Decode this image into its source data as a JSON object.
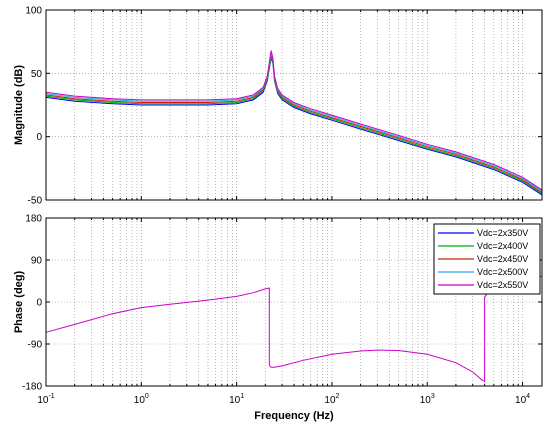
{
  "chart_data": [
    {
      "type": "line",
      "panel": "magnitude",
      "xscale": "log",
      "xlim": [
        0.1,
        16000
      ],
      "ylim": [
        -50,
        100
      ],
      "ylabel": "Magnitude (dB)",
      "yticks": [
        -50,
        0,
        50,
        100
      ],
      "ytick_labels": [
        "-50",
        "0",
        "50",
        "100"
      ],
      "grid": true,
      "series": [
        {
          "name": "Vdc=2x350V",
          "color": "#0000ff",
          "x": [
            0.1,
            0.2,
            0.5,
            1,
            2,
            5,
            10,
            15,
            19,
            21,
            23,
            24,
            25,
            27,
            30,
            40,
            60,
            100,
            200,
            500,
            1000,
            2000,
            5000,
            10000,
            16000
          ],
          "y": [
            31,
            28,
            26,
            25,
            25,
            25,
            26,
            29,
            35,
            44,
            62,
            58,
            44,
            34,
            29,
            23,
            18,
            13,
            6,
            -3,
            -10,
            -16,
            -26,
            -36,
            -46
          ]
        },
        {
          "name": "Vdc=2x400V",
          "color": "#00aa00",
          "x": [
            0.1,
            0.2,
            0.5,
            1,
            2,
            5,
            10,
            15,
            19,
            21,
            23,
            24,
            25,
            27,
            30,
            40,
            60,
            100,
            200,
            500,
            1000,
            2000,
            5000,
            10000,
            16000
          ],
          "y": [
            32,
            29,
            27,
            26,
            26,
            26,
            27,
            30,
            36,
            45,
            63,
            59,
            45,
            35,
            30,
            24,
            19,
            14,
            7,
            -2,
            -9,
            -15,
            -25,
            -35,
            -45
          ]
        },
        {
          "name": "Vdc=2x450V",
          "color": "#cc2200",
          "x": [
            0.1,
            0.2,
            0.5,
            1,
            2,
            5,
            10,
            15,
            19,
            21,
            23,
            24,
            25,
            27,
            30,
            40,
            60,
            100,
            200,
            500,
            1000,
            2000,
            5000,
            10000,
            16000
          ],
          "y": [
            33,
            30,
            28,
            27,
            27,
            27,
            28,
            31,
            37,
            46,
            65,
            60,
            46,
            36,
            31,
            25,
            20,
            15,
            8,
            -1,
            -8,
            -14,
            -24,
            -34,
            -44
          ]
        },
        {
          "name": "Vdc=2x500V",
          "color": "#33aadd",
          "x": [
            0.1,
            0.2,
            0.5,
            1,
            2,
            5,
            10,
            15,
            19,
            21,
            23,
            24,
            25,
            27,
            30,
            40,
            60,
            100,
            200,
            500,
            1000,
            2000,
            5000,
            10000,
            16000
          ],
          "y": [
            34,
            31,
            29,
            28,
            28,
            28,
            29,
            32,
            38,
            47,
            66,
            61,
            47,
            37,
            32,
            26,
            21,
            16,
            9,
            0,
            -7,
            -13,
            -23,
            -33,
            -43
          ]
        },
        {
          "name": "Vdc=2x550V",
          "color": "#cc00cc",
          "x": [
            0.1,
            0.2,
            0.5,
            1,
            2,
            5,
            10,
            15,
            19,
            21,
            23,
            24,
            25,
            27,
            30,
            40,
            60,
            100,
            200,
            500,
            1000,
            2000,
            5000,
            10000,
            16000
          ],
          "y": [
            35,
            32,
            30,
            29,
            29,
            29,
            30,
            33,
            39,
            48,
            68,
            62,
            48,
            38,
            33,
            27,
            22,
            17,
            10,
            1,
            -6,
            -12,
            -22,
            -32,
            -42
          ]
        }
      ]
    },
    {
      "type": "line",
      "panel": "phase",
      "xscale": "log",
      "xlim": [
        0.1,
        16000
      ],
      "ylim": [
        -180,
        180
      ],
      "xlabel": "Frequency  (Hz)",
      "ylabel": "Phase (deg)",
      "xticks": [
        0.1,
        1,
        10,
        100,
        1000,
        10000
      ],
      "xtick_labels": [
        {
          "base": "10",
          "exp": "-1"
        },
        {
          "base": "10",
          "exp": "0"
        },
        {
          "base": "10",
          "exp": "1"
        },
        {
          "base": "10",
          "exp": "2"
        },
        {
          "base": "10",
          "exp": "3"
        },
        {
          "base": "10",
          "exp": "4"
        }
      ],
      "yticks": [
        -180,
        -90,
        0,
        90,
        180
      ],
      "ytick_labels": [
        "-180",
        "-90",
        "0",
        "90",
        "180"
      ],
      "grid": true,
      "legend": "top-right",
      "series": [
        {
          "name": "Vdc=2x550V",
          "color": "#cc00cc",
          "x": [
            0.1,
            0.2,
            0.5,
            1,
            2,
            5,
            10,
            15,
            20,
            22,
            22,
            23,
            25,
            30,
            50,
            100,
            200,
            300,
            500,
            1000,
            2000,
            3000,
            3800,
            4000,
            4000,
            5000,
            16000
          ],
          "y": [
            -65,
            -48,
            -25,
            -12,
            -5,
            4,
            12,
            20,
            28,
            30,
            -135,
            -140,
            -140,
            -137,
            -125,
            -112,
            -105,
            -103,
            -104,
            -112,
            -130,
            -150,
            -168,
            -170,
            10,
            40,
            55
          ]
        }
      ]
    }
  ]
}
